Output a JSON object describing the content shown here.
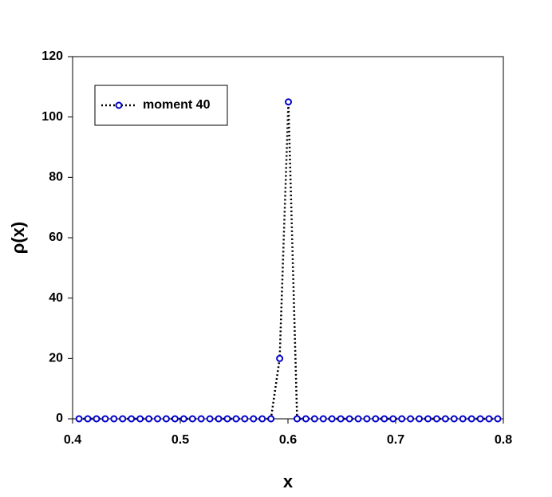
{
  "chart_data": {
    "type": "line",
    "x_label": "x",
    "y_label": "ρ(x)",
    "x": [
      0.406,
      0.4141,
      0.4222,
      0.4303,
      0.4384,
      0.4465,
      0.4546,
      0.4627,
      0.4708,
      0.4789,
      0.487,
      0.4951,
      0.5032,
      0.5113,
      0.5194,
      0.5275,
      0.5356,
      0.5437,
      0.5518,
      0.5599,
      0.568,
      0.5761,
      0.5842,
      0.5923,
      0.6004,
      0.6085,
      0.6166,
      0.6247,
      0.6328,
      0.6409,
      0.649,
      0.6571,
      0.6652,
      0.6733,
      0.6814,
      0.6895,
      0.6976,
      0.7057,
      0.7138,
      0.7219,
      0.73,
      0.7381,
      0.7462,
      0.7543,
      0.7624,
      0.7705,
      0.7786,
      0.7867,
      0.7948
    ],
    "series": [
      {
        "name": "moment 40",
        "color": "#0000cc",
        "line_color": "#000000",
        "values": [
          0,
          0,
          0,
          0,
          0,
          0,
          0,
          0,
          0,
          0,
          0,
          0,
          0,
          0,
          0,
          0,
          0,
          0,
          0,
          0,
          0,
          0,
          0,
          20,
          105,
          0,
          0,
          0,
          0,
          0,
          0,
          0,
          0,
          0,
          0,
          0,
          0,
          0,
          0,
          0,
          0,
          0,
          0,
          0,
          0,
          0,
          0,
          0,
          0
        ]
      }
    ],
    "xlim": [
      0.4,
      0.8
    ],
    "xticks": [
      0.4,
      0.5,
      0.6,
      0.7,
      0.8
    ],
    "ylim": [
      0,
      120
    ],
    "yticks": [
      0,
      20,
      40,
      60,
      80,
      100,
      120
    ],
    "legend": "top-left"
  }
}
